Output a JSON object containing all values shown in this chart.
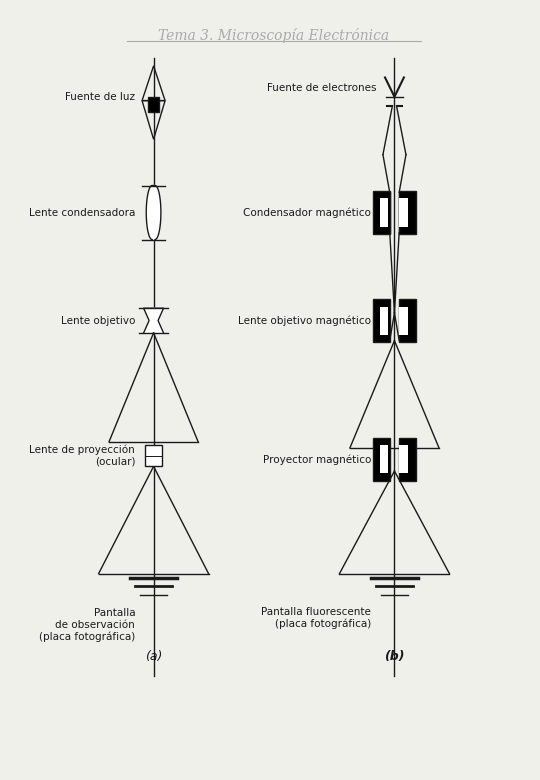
{
  "title": "Tema 3. Microscopía Electrónica",
  "title_color": "#aaaaaa",
  "bg_color": "#f0f0eb",
  "line_color": "#1a1a1a",
  "label_a": "(a)",
  "label_b": "(b)",
  "left_labels": [
    {
      "text": "Fuente de luz",
      "y": 8.7
    },
    {
      "text": "Lente condensadora",
      "y": 7.3
    },
    {
      "text": "Lente objetivo",
      "y": 5.9
    },
    {
      "text": "Lente de proyección\n(ocular)",
      "y": 4.15
    },
    {
      "text": "Pantalla\nde observación\n(placa fotográfica)",
      "y": 2.5
    }
  ],
  "right_labels": [
    {
      "text": "Fuente de electrones",
      "y": 8.7
    },
    {
      "text": "Condensador magnético",
      "y": 7.3
    },
    {
      "text": "Lente objetivo magnético",
      "y": 5.9
    },
    {
      "text": "Proyector magnético",
      "y": 4.1
    },
    {
      "text": "Pantalla fluorescente\n(placa fotográfica)",
      "y": 2.5
    }
  ]
}
